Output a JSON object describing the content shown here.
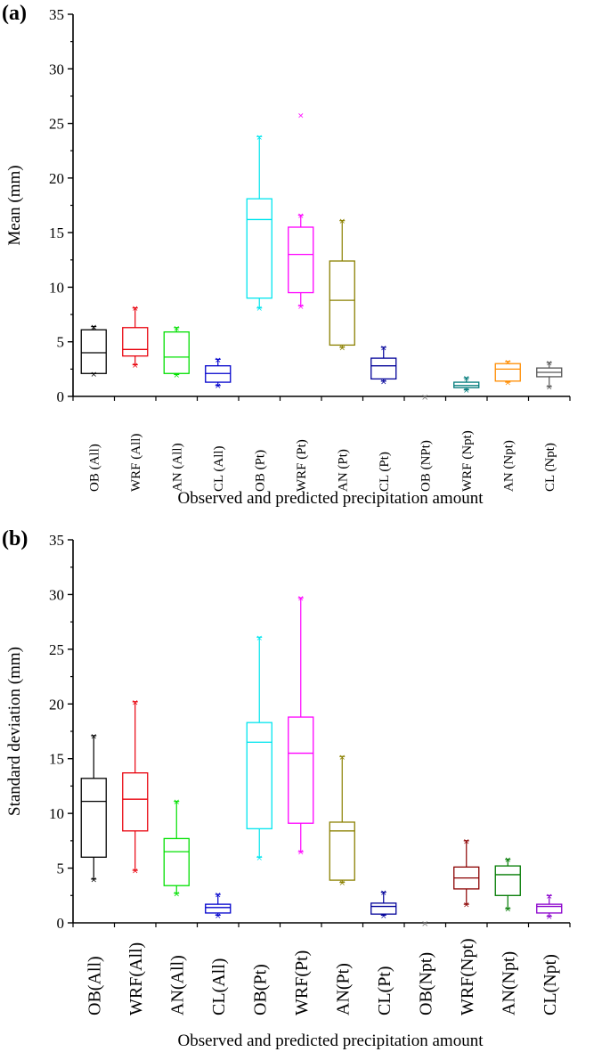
{
  "chart_data": [
    {
      "type": "box",
      "panel_label": "(a)",
      "ylabel": "Mean (mm)",
      "xlabel": "Observed and predicted precipitation amount",
      "ylim": [
        0,
        35
      ],
      "yticks": [
        0,
        5,
        10,
        15,
        20,
        25,
        30,
        35
      ],
      "yticks_text": [
        "0",
        "5",
        "10",
        "15",
        "20",
        "25",
        "30",
        "35"
      ],
      "categories": [
        "OB (All)",
        "WRF (All)",
        "AN (All)",
        "CL (All)",
        "OB (Pt)",
        "WRF (Pt)",
        "AN (Pt)",
        "CL (Pt)",
        "OB (NPt)",
        "WRF (Npt)",
        "AN (Npt)",
        "CL (Npt)"
      ],
      "colors": [
        "#000000",
        "#e8000b",
        "#00e000",
        "#0000cc",
        "#00e5ee",
        "#ff00ff",
        "#8b8000",
        "#000099",
        "#808080",
        "#007a7a",
        "#ff8c00",
        "#555555"
      ],
      "boxes": [
        {
          "whisker_low": 2.1,
          "q1": 2.1,
          "median": 4.0,
          "q3": 6.1,
          "whisker_high": 6.4,
          "outliers": []
        },
        {
          "whisker_low": 2.9,
          "q1": 3.7,
          "median": 4.3,
          "q3": 6.3,
          "whisker_high": 8.1,
          "outliers": []
        },
        {
          "whisker_low": 2.0,
          "q1": 2.1,
          "median": 3.6,
          "q3": 5.9,
          "whisker_high": 6.3,
          "outliers": []
        },
        {
          "whisker_low": 1.0,
          "q1": 1.3,
          "median": 2.1,
          "q3": 2.8,
          "whisker_high": 3.4,
          "outliers": []
        },
        {
          "whisker_low": 8.1,
          "q1": 9.0,
          "median": 16.2,
          "q3": 18.1,
          "whisker_high": 23.8,
          "outliers": []
        },
        {
          "whisker_low": 8.3,
          "q1": 9.5,
          "median": 13.0,
          "q3": 15.5,
          "whisker_high": 16.6,
          "outliers": [
            25.8
          ]
        },
        {
          "whisker_low": 4.5,
          "q1": 4.7,
          "median": 8.8,
          "q3": 12.4,
          "whisker_high": 16.1,
          "outliers": []
        },
        {
          "whisker_low": 1.4,
          "q1": 1.6,
          "median": 2.8,
          "q3": 3.5,
          "whisker_high": 4.5,
          "outliers": []
        },
        {
          "whisker_low": 0.0,
          "q1": 0.0,
          "median": 0.0,
          "q3": 0.0,
          "whisker_high": 0.0,
          "outliers": []
        },
        {
          "whisker_low": 0.6,
          "q1": 0.8,
          "median": 1.0,
          "q3": 1.3,
          "whisker_high": 1.7,
          "outliers": []
        },
        {
          "whisker_low": 1.3,
          "q1": 1.4,
          "median": 2.5,
          "q3": 3.0,
          "whisker_high": 3.2,
          "outliers": []
        },
        {
          "whisker_low": 0.9,
          "q1": 1.8,
          "median": 2.2,
          "q3": 2.6,
          "whisker_high": 3.1,
          "outliers": []
        }
      ]
    },
    {
      "type": "box",
      "panel_label": "(b)",
      "ylabel": "Standard deviation (mm)",
      "xlabel": "Observed and predicted precipitation amount",
      "ylim": [
        0,
        35
      ],
      "yticks": [
        0,
        5,
        10,
        15,
        20,
        25,
        30,
        35
      ],
      "yticks_text": [
        "0",
        "5",
        "10",
        "15",
        "20",
        "25",
        "30",
        "35"
      ],
      "categories": [
        "OB(All)",
        "WRF(All)",
        "AN(All)",
        "CL(All)",
        "OB(Pt)",
        "WRF(Pt)",
        "AN(Pt)",
        "CL(Pt)",
        "OB(Npt)",
        "WRF(Npt)",
        "AN(Npt)",
        "CL(Npt)"
      ],
      "colors": [
        "#000000",
        "#e8000b",
        "#00e000",
        "#0000cc",
        "#00e5ee",
        "#ff00ff",
        "#8b8000",
        "#000099",
        "#808080",
        "#8b0000",
        "#007a00",
        "#8a00cc"
      ],
      "boxes": [
        {
          "whisker_low": 4.0,
          "q1": 6.0,
          "median": 11.1,
          "q3": 13.2,
          "whisker_high": 17.1,
          "outliers": []
        },
        {
          "whisker_low": 4.8,
          "q1": 8.4,
          "median": 11.3,
          "q3": 13.7,
          "whisker_high": 20.2,
          "outliers": []
        },
        {
          "whisker_low": 2.7,
          "q1": 3.4,
          "median": 6.5,
          "q3": 7.7,
          "whisker_high": 11.1,
          "outliers": []
        },
        {
          "whisker_low": 0.7,
          "q1": 0.9,
          "median": 1.4,
          "q3": 1.7,
          "whisker_high": 2.6,
          "outliers": []
        },
        {
          "whisker_low": 6.0,
          "q1": 8.6,
          "median": 16.5,
          "q3": 18.3,
          "whisker_high": 26.1,
          "outliers": []
        },
        {
          "whisker_low": 6.5,
          "q1": 9.1,
          "median": 15.5,
          "q3": 18.8,
          "whisker_high": 29.7,
          "outliers": []
        },
        {
          "whisker_low": 3.7,
          "q1": 3.9,
          "median": 8.4,
          "q3": 9.2,
          "whisker_high": 15.2,
          "outliers": []
        },
        {
          "whisker_low": 0.7,
          "q1": 0.8,
          "median": 1.5,
          "q3": 1.8,
          "whisker_high": 2.8,
          "outliers": []
        },
        {
          "whisker_low": 0.0,
          "q1": 0.0,
          "median": 0.0,
          "q3": 0.0,
          "whisker_high": 0.0,
          "outliers": []
        },
        {
          "whisker_low": 1.7,
          "q1": 3.1,
          "median": 4.1,
          "q3": 5.1,
          "whisker_high": 7.5,
          "outliers": []
        },
        {
          "whisker_low": 1.3,
          "q1": 2.5,
          "median": 4.4,
          "q3": 5.2,
          "whisker_high": 5.8,
          "outliers": []
        },
        {
          "whisker_low": 0.6,
          "q1": 0.9,
          "median": 1.5,
          "q3": 1.7,
          "whisker_high": 2.5,
          "outliers": []
        }
      ]
    }
  ]
}
